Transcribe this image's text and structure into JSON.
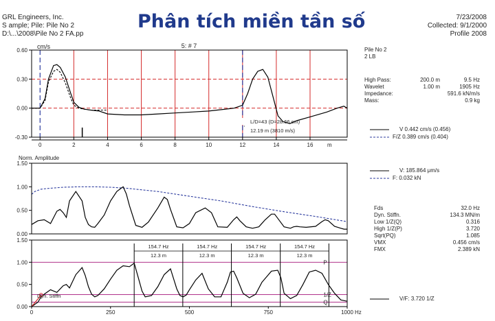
{
  "header": {
    "company": "GRL Engineers, Inc.",
    "sample_line": "S ample; Pile: Pile No 2",
    "path": "D:\\...\\2008\\Pile No 2 FA.pp",
    "title": "Phân tích miền tần số",
    "date": "7/23/2008",
    "collected": "Collected: 9/1/2000",
    "profile": "Profile  2008"
  },
  "right_panel": {
    "pile_name": "Pile No 2",
    "blow_label": "2 LB",
    "params": [
      {
        "label": "High Pass:",
        "mid": "200.0 m",
        "value": "9.5 Hz"
      },
      {
        "label": "Wavelet",
        "mid": "1.00 m",
        "value": "1905 Hz"
      },
      {
        "label": "Impedance:",
        "mid": "",
        "value": "591.6 kN/m/s"
      },
      {
        "label": "Mass:",
        "mid": "",
        "value": "0.9 kg"
      }
    ],
    "legend_top": [
      {
        "label": "V  0.442 cm/s (0.456)",
        "style": "solid",
        "color": "#000000"
      },
      {
        "label": "F/Z  0.389 cm/s (0.404)",
        "style": "dashed",
        "color": "#2b3a9e"
      }
    ],
    "legend_mid": [
      {
        "label": "V: 185.864 μm/s",
        "style": "solid",
        "color": "#000000"
      },
      {
        "label": "F: 0.032 kN",
        "style": "dashed",
        "color": "#2b3a9e"
      }
    ],
    "stats": [
      {
        "label": "Fds",
        "value": "32.0 Hz"
      },
      {
        "label": "Dyn. Stiffn.",
        "value": "134.3 MN/m"
      },
      {
        "label": "Low  1/Z(Q)",
        "value": "0.316"
      },
      {
        "label": "High 1/Z(P)",
        "value": "3.720"
      },
      {
        "label": "Sqrt(PQ)",
        "value": "1.085"
      },
      {
        "label": "VMX",
        "value": "0.456 cm/s"
      },
      {
        "label": "FMX",
        "value": "2.389 kN"
      }
    ],
    "legend_bottom": [
      {
        "label": "V/F: 3.720 1/Z",
        "style": "solid",
        "color": "#000000"
      }
    ]
  },
  "chart_data": [
    {
      "type": "line",
      "ylabel": "cm/s",
      "subtitle": "5: # 7",
      "xunit": "m",
      "xlim": [
        -0.5,
        18.2
      ],
      "ylim": [
        -0.3,
        0.6
      ],
      "yticks": [
        0.6,
        0.3,
        0.0,
        -0.3
      ],
      "ytick_labels": [
        "0.60",
        "0.30",
        "0.00",
        "-0.30"
      ],
      "xticks": [
        0,
        2,
        4,
        6,
        8,
        10,
        12,
        14,
        16
      ],
      "xtick_labels": [
        "0",
        "2",
        "4",
        "6",
        "8",
        "10",
        "12",
        "14",
        "16"
      ],
      "red_gridlines_x": [
        2,
        4,
        6,
        8,
        10,
        12,
        14,
        16
      ],
      "red_dashed_y": [
        0.3,
        0.0
      ],
      "blue_markers_x": [
        0,
        12
      ],
      "annotations": [
        "L/D=43 (D=28.66 cm)",
        "12.19 m (3810 m/s)"
      ],
      "series": [
        {
          "name": "V",
          "style": "solid",
          "color": "#000000",
          "x": [
            -0.5,
            0.0,
            0.3,
            0.5,
            0.8,
            1.0,
            1.2,
            1.5,
            1.8,
            2.0,
            2.3,
            2.6,
            3.0,
            3.5,
            4.0,
            5.0,
            6.0,
            7.0,
            8.0,
            9.0,
            10.0,
            11.0,
            11.5,
            12.0,
            12.3,
            12.6,
            12.9,
            13.2,
            13.5,
            13.8,
            14.1,
            14.4,
            14.8,
            15.2,
            16.0,
            17.0,
            17.6,
            18.0,
            18.2
          ],
          "y": [
            0.0,
            0.0,
            0.1,
            0.3,
            0.44,
            0.45,
            0.42,
            0.32,
            0.16,
            0.06,
            0.01,
            -0.01,
            -0.02,
            -0.03,
            -0.06,
            -0.07,
            -0.07,
            -0.06,
            -0.05,
            -0.04,
            -0.03,
            -0.01,
            0.0,
            0.03,
            0.15,
            0.3,
            0.38,
            0.4,
            0.32,
            0.12,
            -0.08,
            -0.14,
            -0.16,
            -0.13,
            -0.09,
            -0.04,
            0.0,
            0.02,
            0.0
          ]
        },
        {
          "name": "F/Z",
          "style": "dashed",
          "color": "#000000",
          "x": [
            -0.5,
            0.0,
            0.3,
            0.5,
            0.8,
            1.0,
            1.2,
            1.5,
            1.8,
            2.0,
            2.3,
            2.6,
            3.0,
            3.5,
            4.0
          ],
          "y": [
            0.0,
            0.0,
            0.08,
            0.27,
            0.38,
            0.4,
            0.37,
            0.26,
            0.11,
            0.03,
            0.0,
            -0.01,
            -0.02,
            -0.02,
            -0.02
          ]
        }
      ]
    },
    {
      "type": "line",
      "ylabel": "Norm. Amplitude",
      "xlim": [
        0,
        1000
      ],
      "ylim": [
        0,
        1.5
      ],
      "yticks": [
        1.5,
        1.0,
        0.5,
        0.0
      ],
      "ytick_labels": [
        "1.50",
        "1.00",
        "0.50",
        "0.00"
      ],
      "series": [
        {
          "name": "V",
          "style": "solid",
          "color": "#000000",
          "x": [
            0,
            20,
            40,
            60,
            80,
            90,
            100,
            110,
            120,
            140,
            160,
            170,
            180,
            190,
            200,
            210,
            230,
            250,
            270,
            290,
            300,
            310,
            330,
            350,
            370,
            400,
            420,
            430,
            440,
            460,
            480,
            500,
            520,
            550,
            570,
            580,
            590,
            620,
            640,
            650,
            660,
            680,
            700,
            720,
            740,
            760,
            770,
            780,
            800,
            820,
            830,
            840,
            850,
            870,
            900,
            920,
            930,
            940,
            960,
            980,
            990,
            1000
          ],
          "y": [
            0.2,
            0.28,
            0.3,
            0.22,
            0.48,
            0.52,
            0.45,
            0.35,
            0.7,
            0.9,
            0.7,
            0.35,
            0.2,
            0.15,
            0.14,
            0.22,
            0.4,
            0.7,
            0.9,
            1.0,
            0.85,
            0.6,
            0.18,
            0.14,
            0.25,
            0.55,
            0.78,
            0.73,
            0.52,
            0.15,
            0.13,
            0.22,
            0.45,
            0.55,
            0.45,
            0.3,
            0.15,
            0.14,
            0.3,
            0.36,
            0.28,
            0.15,
            0.12,
            0.15,
            0.3,
            0.42,
            0.42,
            0.33,
            0.15,
            0.12,
            0.15,
            0.16,
            0.15,
            0.14,
            0.16,
            0.26,
            0.3,
            0.28,
            0.16,
            0.12,
            0.1,
            0.1
          ]
        },
        {
          "name": "F",
          "style": "dashed",
          "color": "#2b3a9e",
          "x": [
            0,
            10,
            30,
            60,
            100,
            150,
            200,
            250,
            300,
            400,
            500,
            600,
            700,
            800,
            900,
            1000
          ],
          "y": [
            0.84,
            0.9,
            0.95,
            0.97,
            0.99,
            1.0,
            1.0,
            0.99,
            0.97,
            0.9,
            0.8,
            0.7,
            0.58,
            0.47,
            0.37,
            0.26
          ]
        }
      ]
    },
    {
      "type": "line",
      "xunit": "Hz",
      "xlim": [
        0,
        1000
      ],
      "ylim": [
        0,
        1.5
      ],
      "yticks": [
        1.5,
        1.0,
        0.5,
        0.0
      ],
      "ytick_labels": [
        "1.50",
        "1.00",
        "0.50",
        "0.00"
      ],
      "xticks": [
        0,
        250,
        500,
        750,
        1000
      ],
      "xtick_labels": [
        "0",
        "250",
        "500",
        "750",
        "1000"
      ],
      "lines_y": [
        {
          "y": 1.0,
          "label": "P"
        },
        {
          "y": 0.27,
          "label": "1/Z"
        },
        {
          "y": 0.1,
          "label": "Q"
        }
      ],
      "peak_markers_x": [
        325,
        479,
        633,
        788,
        942
      ],
      "intervals": [
        {
          "from": 325,
          "to": 479,
          "freq": "154.7 Hz",
          "len": "12.3 m"
        },
        {
          "from": 479,
          "to": 633,
          "freq": "154.7 Hz",
          "len": "12.3 m"
        },
        {
          "from": 633,
          "to": 788,
          "freq": "154.7 Hz",
          "len": "12.3 m"
        },
        {
          "from": 788,
          "to": 942,
          "freq": "154.7 Hz",
          "len": "12.3 m"
        }
      ],
      "stiffness_label": "Dyn. Stiffn",
      "stiffness_line": {
        "x": [
          0,
          30
        ],
        "y": [
          0,
          0.26
        ]
      },
      "series": [
        {
          "name": "V/F",
          "style": "solid",
          "color": "#000000",
          "x": [
            0,
            20,
            30,
            40,
            60,
            80,
            100,
            110,
            120,
            140,
            160,
            170,
            180,
            190,
            200,
            210,
            230,
            250,
            270,
            290,
            310,
            325,
            340,
            350,
            360,
            380,
            400,
            420,
            440,
            460,
            470,
            480,
            490,
            500,
            520,
            540,
            560,
            580,
            600,
            620,
            630,
            640,
            650,
            670,
            690,
            710,
            730,
            760,
            780,
            790,
            800,
            820,
            840,
            860,
            880,
            900,
            920,
            940,
            950,
            960,
            980,
            1000
          ],
          "y": [
            0.0,
            0.1,
            0.22,
            0.28,
            0.38,
            0.32,
            0.47,
            0.5,
            0.42,
            0.72,
            0.88,
            0.7,
            0.45,
            0.28,
            0.22,
            0.25,
            0.4,
            0.62,
            0.82,
            0.92,
            0.9,
            0.98,
            0.6,
            0.35,
            0.22,
            0.25,
            0.45,
            0.72,
            0.85,
            0.4,
            0.25,
            0.22,
            0.26,
            0.38,
            0.6,
            0.75,
            0.4,
            0.22,
            0.22,
            0.55,
            0.78,
            0.8,
            0.65,
            0.3,
            0.2,
            0.28,
            0.55,
            0.8,
            0.82,
            0.65,
            0.3,
            0.18,
            0.25,
            0.5,
            0.78,
            0.82,
            0.75,
            0.5,
            0.4,
            0.3,
            0.15,
            0.12
          ]
        }
      ]
    }
  ]
}
